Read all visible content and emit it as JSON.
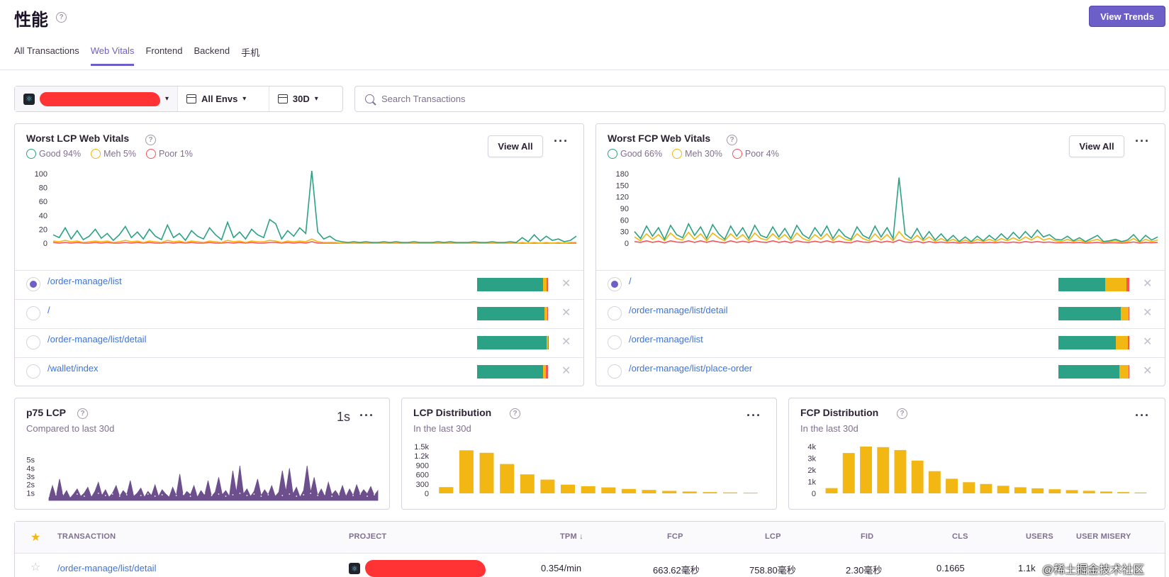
{
  "header": {
    "title": "性能",
    "view_trends": "View Trends"
  },
  "tabs": [
    {
      "label": "All Transactions",
      "active": false
    },
    {
      "label": "Web Vitals",
      "active": true
    },
    {
      "label": "Frontend",
      "active": false
    },
    {
      "label": "Backend",
      "active": false
    },
    {
      "label": "手机",
      "active": false
    }
  ],
  "filters": {
    "env": "All Envs",
    "date": "30D"
  },
  "search": {
    "placeholder": "Search Transactions",
    "value": ""
  },
  "lcp_panel": {
    "title": "Worst LCP Web Vitals",
    "legend": {
      "good": "Good 94%",
      "meh": "Meh 5%",
      "poor": "Poor 1%"
    },
    "view_all": "View All",
    "rows": [
      {
        "name": "/order-manage/list",
        "good": 0.93,
        "meh": 0.05,
        "poor": 0.02,
        "selected": true
      },
      {
        "name": "/",
        "good": 0.95,
        "meh": 0.04,
        "poor": 0.01,
        "selected": false
      },
      {
        "name": "/order-manage/list/detail",
        "good": 0.98,
        "meh": 0.015,
        "poor": 0.005,
        "selected": false
      },
      {
        "name": "/wallet/index",
        "good": 0.93,
        "meh": 0.04,
        "poor": 0.03,
        "selected": false
      }
    ]
  },
  "fcp_panel": {
    "title": "Worst FCP Web Vitals",
    "legend": {
      "good": "Good 66%",
      "meh": "Meh 30%",
      "poor": "Poor 4%"
    },
    "view_all": "View All",
    "rows": [
      {
        "name": "/",
        "good": 0.66,
        "meh": 0.3,
        "poor": 0.04,
        "selected": true
      },
      {
        "name": "/order-manage/list/detail",
        "good": 0.88,
        "meh": 0.11,
        "poor": 0.01,
        "selected": false
      },
      {
        "name": "/order-manage/list",
        "good": 0.81,
        "meh": 0.17,
        "poor": 0.02,
        "selected": false
      },
      {
        "name": "/order-manage/list/place-order",
        "good": 0.86,
        "meh": 0.13,
        "poor": 0.01,
        "selected": false
      }
    ]
  },
  "p75_panel": {
    "title": "p75 LCP",
    "subtitle": "Compared to last 30d",
    "value": "1s"
  },
  "lcp_dist_panel": {
    "title": "LCP Distribution",
    "subtitle": "In the last 30d"
  },
  "fcp_dist_panel": {
    "title": "FCP Distribution",
    "subtitle": "In the last 30d"
  },
  "table": {
    "headers": {
      "transaction": "TRANSACTION",
      "project": "PROJECT",
      "tpm": "TPM ↓",
      "fcp": "FCP",
      "lcp": "LCP",
      "fid": "FID",
      "cls": "CLS",
      "users": "USERS",
      "misery": "USER MISERY"
    },
    "rows": [
      {
        "transaction": "/order-manage/list/detail",
        "tpm": "0.354/min",
        "fcp": "663.62毫秒",
        "lcp": "758.80毫秒",
        "fid": "2.30毫秒",
        "cls": "0.1665",
        "users": "1.1k"
      }
    ]
  },
  "watermark": "@稀土掘金技术社区",
  "colors": {
    "accent": "#6c5fc7",
    "good": "#2ba185",
    "meh": "#f2b712",
    "poor": "#f55459",
    "link": "#3d74db",
    "area": "#6c4f8c"
  },
  "chart_data": [
    {
      "type": "line",
      "name": "lcp-vitals",
      "ylim": [
        0,
        100
      ],
      "yticks": [
        "0",
        "20",
        "40",
        "60",
        "80",
        "100"
      ],
      "series": [
        {
          "name": "good",
          "color": "#2ba185",
          "values": [
            12,
            8,
            22,
            6,
            18,
            5,
            10,
            20,
            7,
            14,
            4,
            12,
            24,
            8,
            16,
            6,
            20,
            10,
            5,
            26,
            8,
            14,
            4,
            18,
            10,
            6,
            22,
            12,
            5,
            30,
            8,
            16,
            6,
            20,
            12,
            8,
            34,
            28,
            6,
            18,
            10,
            22,
            14,
            104,
            16,
            6,
            10,
            4,
            2,
            1,
            2,
            1,
            2,
            1,
            1,
            2,
            1,
            2,
            1,
            1,
            2,
            1,
            1,
            1,
            2,
            1,
            2,
            1,
            1,
            1,
            2,
            1,
            1,
            2,
            1,
            1,
            2,
            1,
            8,
            2,
            12,
            3,
            10,
            4,
            6,
            2,
            4,
            10
          ]
        },
        {
          "name": "meh",
          "color": "#f2b712",
          "values": [
            3,
            2,
            4,
            2,
            3,
            1,
            2,
            3,
            2,
            3,
            1,
            2,
            4,
            2,
            3,
            1,
            3,
            2,
            1,
            4,
            2,
            3,
            1,
            3,
            2,
            1,
            3,
            2,
            1,
            4,
            2,
            3,
            1,
            3,
            2,
            2,
            4,
            3,
            1,
            3,
            2,
            3,
            2,
            6,
            2,
            1,
            1,
            1,
            0,
            0,
            0,
            0,
            0,
            0,
            0,
            0,
            0,
            0,
            0,
            0,
            0,
            0,
            0,
            0,
            0,
            0,
            0,
            0,
            0,
            0,
            0,
            0,
            0,
            0,
            0,
            0,
            0,
            0,
            1,
            0,
            1,
            0,
            1,
            0,
            1,
            0,
            1,
            1
          ]
        },
        {
          "name": "poor",
          "color": "#f55459",
          "values": [
            1,
            0,
            1,
            0,
            1,
            0,
            0,
            1,
            0,
            1,
            0,
            0,
            1,
            0,
            1,
            0,
            1,
            0,
            0,
            1,
            0,
            1,
            0,
            1,
            0,
            0,
            1,
            0,
            0,
            1,
            0,
            1,
            0,
            1,
            0,
            0,
            1,
            1,
            0,
            1,
            0,
            1,
            0,
            2,
            0,
            0,
            0,
            0,
            0,
            0,
            0,
            0,
            0,
            0,
            0,
            0,
            0,
            0,
            0,
            0,
            0,
            0,
            0,
            0,
            0,
            0,
            0,
            0,
            0,
            0,
            0,
            0,
            0,
            0,
            0,
            0,
            0,
            0,
            0,
            0,
            0,
            0,
            0,
            0,
            0,
            0,
            0,
            0
          ]
        }
      ]
    },
    {
      "type": "line",
      "name": "fcp-vitals",
      "ylim": [
        0,
        180
      ],
      "yticks": [
        "0",
        "30",
        "60",
        "90",
        "120",
        "150",
        "180"
      ],
      "series": [
        {
          "name": "good",
          "color": "#2ba185",
          "values": [
            30,
            12,
            44,
            18,
            40,
            10,
            46,
            22,
            14,
            50,
            20,
            42,
            12,
            48,
            24,
            10,
            44,
            18,
            40,
            12,
            46,
            20,
            14,
            42,
            16,
            38,
            12,
            46,
            22,
            12,
            40,
            18,
            44,
            12,
            36,
            18,
            10,
            42,
            20,
            12,
            44,
            16,
            40,
            12,
            170,
            24,
            12,
            38,
            10,
            30,
            8,
            24,
            6,
            20,
            4,
            16,
            4,
            18,
            6,
            20,
            8,
            24,
            10,
            28,
            12,
            30,
            14,
            34,
            16,
            22,
            10,
            8,
            18,
            6,
            14,
            4,
            12,
            20,
            4,
            6,
            10,
            4,
            8,
            22,
            4,
            20,
            8,
            16
          ]
        },
        {
          "name": "meh",
          "color": "#f2b712",
          "values": [
            16,
            6,
            24,
            10,
            22,
            6,
            26,
            12,
            8,
            28,
            10,
            24,
            6,
            26,
            14,
            6,
            24,
            10,
            22,
            6,
            26,
            12,
            8,
            24,
            10,
            22,
            6,
            26,
            12,
            6,
            22,
            10,
            24,
            6,
            20,
            10,
            6,
            24,
            12,
            6,
            24,
            8,
            22,
            6,
            30,
            12,
            6,
            20,
            6,
            16,
            4,
            12,
            4,
            10,
            2,
            8,
            2,
            10,
            4,
            10,
            4,
            12,
            6,
            14,
            6,
            16,
            8,
            18,
            8,
            12,
            6,
            4,
            10,
            4,
            8,
            2,
            6,
            10,
            2,
            4,
            6,
            2,
            4,
            12,
            2,
            10,
            4,
            8
          ]
        },
        {
          "name": "poor",
          "color": "#f55459",
          "values": [
            4,
            2,
            6,
            2,
            5,
            1,
            6,
            3,
            2,
            6,
            2,
            6,
            2,
            6,
            3,
            1,
            6,
            2,
            5,
            2,
            6,
            3,
            2,
            6,
            2,
            5,
            1,
            6,
            3,
            2,
            5,
            2,
            6,
            2,
            5,
            2,
            1,
            6,
            3,
            2,
            6,
            2,
            5,
            2,
            8,
            3,
            2,
            5,
            1,
            4,
            1,
            3,
            1,
            2,
            0,
            2,
            0,
            2,
            1,
            2,
            1,
            3,
            1,
            3,
            1,
            4,
            2,
            4,
            2,
            3,
            1,
            1,
            2,
            1,
            2,
            0,
            1,
            2,
            0,
            1,
            1,
            0,
            1,
            3,
            0,
            2,
            1,
            2
          ]
        }
      ]
    },
    {
      "type": "area",
      "name": "p75-lcp",
      "ylim": [
        0,
        6
      ],
      "yticks": [
        "1s",
        "2s",
        "3s",
        "4s",
        "5s"
      ],
      "series": [
        {
          "name": "p75",
          "color": "#6c4f8c",
          "values": [
            0.3,
            1.8,
            0.4,
            2.6,
            0.5,
            1.2,
            0.3,
            0.8,
            1.4,
            0.5,
            0.9,
            1.6,
            0.4,
            1.1,
            2.2,
            0.6,
            1.3,
            0.4,
            0.9,
            1.8,
            0.5,
            1.2,
            0.7,
            2.4,
            0.5,
            0.9,
            1.5,
            0.4,
            1.1,
            0.6,
            1.9,
            0.5,
            1.3,
            0.8,
            0.4,
            1.6,
            0.6,
            3.2,
            0.5,
            1.1,
            0.7,
            1.8,
            0.4,
            1.2,
            0.6,
            2.4,
            0.5,
            1.0,
            2.8,
            0.7,
            1.2,
            0.5,
            3.6,
            1.0,
            4.2,
            0.8,
            1.4,
            0.5,
            1.1,
            2.6,
            0.6,
            1.3,
            0.7,
            1.8,
            0.5,
            1.0,
            3.6,
            1.1,
            3.9,
            0.8,
            1.6,
            0.4,
            1.2,
            4.2,
            1.0,
            2.8,
            0.6,
            1.4,
            0.5,
            2.2,
            0.7,
            1.2,
            0.6,
            1.8,
            0.5,
            1.4,
            0.6,
            1.9,
            0.7,
            1.3,
            0.8,
            1.7,
            0.6,
            1.2
          ]
        }
      ]
    },
    {
      "type": "bar",
      "name": "lcp-distribution",
      "ylim": [
        0,
        1500
      ],
      "yticks": [
        "0",
        "300",
        "600",
        "900",
        "1.2k",
        "1.5k"
      ],
      "values": [
        200,
        1380,
        1300,
        940,
        610,
        440,
        280,
        230,
        190,
        140,
        110,
        80,
        60,
        40,
        30,
        20
      ]
    },
    {
      "type": "bar",
      "name": "fcp-distribution",
      "ylim": [
        0,
        4000
      ],
      "yticks": [
        "0",
        "1k",
        "2k",
        "3k",
        "4k"
      ],
      "values": [
        450,
        3450,
        4000,
        3950,
        3700,
        2800,
        1900,
        1250,
        950,
        800,
        650,
        520,
        430,
        350,
        280,
        220,
        160,
        110,
        70
      ]
    }
  ]
}
